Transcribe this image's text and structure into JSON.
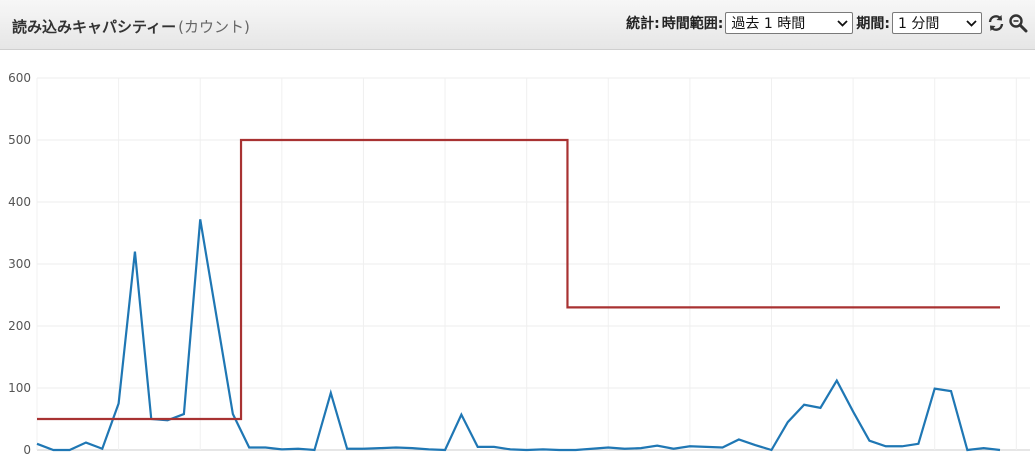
{
  "widget": {
    "title": "読み込みキャパシティー",
    "unit": "(カウント)"
  },
  "controls": {
    "statistic_label": "統計:",
    "range_label": "時間範囲:",
    "range_value": "過去 1 時間",
    "period_label": "期間:",
    "period_value": "1 分間",
    "refresh_icon": "refresh-icon",
    "zoom_icon": "zoom-icon"
  },
  "chart_data": {
    "type": "line",
    "ylim": [
      0,
      600
    ],
    "yticks": [
      0,
      100,
      200,
      300,
      400,
      500,
      600
    ],
    "grid": true,
    "series": [
      {
        "color": "#1f77b4",
        "x": [
          0,
          1,
          2,
          3,
          4,
          5,
          6,
          7,
          8,
          9,
          10,
          11,
          12,
          13,
          14,
          15,
          16,
          17,
          18,
          19,
          20,
          21,
          22,
          23,
          24,
          25,
          26,
          27,
          28,
          29,
          30,
          31,
          32,
          33,
          34,
          35,
          36,
          37,
          38,
          39,
          40,
          41,
          42,
          43,
          44,
          45,
          46,
          47,
          48,
          49,
          50,
          51,
          52,
          53,
          54,
          55,
          56,
          57,
          58,
          59
        ],
        "values": [
          10,
          0,
          0,
          12,
          2,
          75,
          320,
          50,
          48,
          58,
          372,
          215,
          58,
          4,
          4,
          1,
          2,
          0,
          92,
          2,
          2,
          3,
          4,
          3,
          1,
          0,
          57,
          5,
          5,
          1,
          0,
          1,
          0,
          0,
          2,
          4,
          2,
          3,
          7,
          2,
          6,
          5,
          4,
          17,
          8,
          0,
          45,
          73,
          68,
          112,
          62,
          15,
          6,
          6,
          10,
          99,
          95,
          0,
          3,
          0
        ]
      },
      {
        "color": "#a83232",
        "x": [
          0,
          12.5,
          12.5,
          32.5,
          32.5,
          59
        ],
        "values": [
          50,
          50,
          500,
          500,
          230,
          230
        ]
      }
    ]
  }
}
